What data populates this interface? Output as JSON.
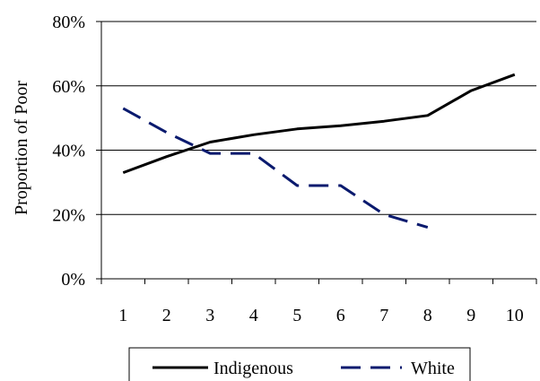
{
  "chart_data": {
    "type": "line",
    "title": "",
    "xlabel": "",
    "ylabel": "Proportion of Poor",
    "categories": [
      "1",
      "2",
      "3",
      "4",
      "5",
      "6",
      "7",
      "8",
      "9",
      "10"
    ],
    "ylim": [
      0,
      0.8
    ],
    "yticks": [
      0,
      0.2,
      0.4,
      0.6,
      0.8
    ],
    "ytick_labels": [
      "0%",
      "20%",
      "40%",
      "60%",
      "80%"
    ],
    "grid": "horizontal",
    "legend_position": "bottom",
    "series": [
      {
        "name": "Indigenous",
        "style": "solid",
        "color": "#000000",
        "values": [
          0.33,
          0.38,
          0.425,
          0.448,
          0.466,
          0.476,
          0.49,
          0.508,
          0.585,
          0.635
        ]
      },
      {
        "name": "White",
        "style": "dashed",
        "color": "#0a1a6e",
        "values": [
          0.53,
          0.455,
          0.39,
          0.39,
          0.29,
          0.29,
          0.2,
          0.16,
          null,
          null
        ]
      }
    ]
  }
}
